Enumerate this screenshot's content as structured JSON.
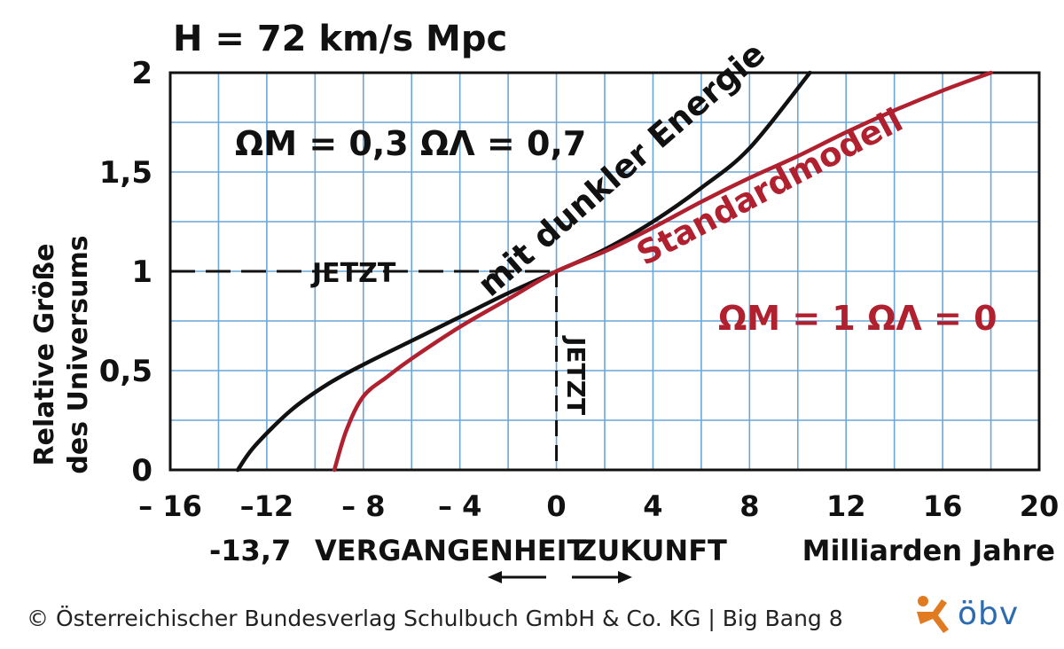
{
  "chart_data": {
    "type": "line",
    "top_label": "H = 72 km/s Mpc",
    "ylabel": [
      "Relative Größe",
      "des Universums"
    ],
    "xlabel": "Milliarden Jahre",
    "xlim": [
      -16,
      20
    ],
    "ylim": [
      0,
      2
    ],
    "x_ticks": [
      "– 16",
      "–12",
      "– 8",
      "– 4",
      "0",
      "4",
      "8",
      "12",
      "16",
      "20"
    ],
    "y_ticks": [
      "0",
      "0,5",
      "1",
      "1,5",
      "2"
    ],
    "grid": true,
    "annotations": {
      "dark_energy_params": "ΩM = 0,3   ΩΛ = 0,7",
      "standard_params": "ΩM = 1   ΩΛ = 0",
      "now_horizontal": "JETZT",
      "now_vertical": "JETZT",
      "age_label": "-13,7",
      "past": "VERGANGENHEIT",
      "future": "ZUKUNFT"
    },
    "series": [
      {
        "name": "mit dunkler Energie",
        "color": "#111111",
        "points": [
          [
            -13.2,
            0
          ],
          [
            -12.5,
            0.12
          ],
          [
            -11,
            0.3
          ],
          [
            -9.5,
            0.43
          ],
          [
            -8,
            0.53
          ],
          [
            -6,
            0.65
          ],
          [
            -4,
            0.77
          ],
          [
            -2,
            0.89
          ],
          [
            0,
            1.0
          ],
          [
            2,
            1.11
          ],
          [
            4,
            1.25
          ],
          [
            6,
            1.42
          ],
          [
            8,
            1.62
          ],
          [
            10.5,
            2.0
          ]
        ]
      },
      {
        "name": "Standardmodell",
        "color": "#b0202e",
        "points": [
          [
            -9.2,
            0
          ],
          [
            -8.7,
            0.2
          ],
          [
            -8,
            0.37
          ],
          [
            -7,
            0.47
          ],
          [
            -6,
            0.56
          ],
          [
            -4,
            0.72
          ],
          [
            -2,
            0.86
          ],
          [
            0,
            1.0
          ],
          [
            2,
            1.1
          ],
          [
            4,
            1.22
          ],
          [
            6,
            1.35
          ],
          [
            8,
            1.47
          ],
          [
            10,
            1.58
          ],
          [
            12,
            1.7
          ],
          [
            14,
            1.81
          ],
          [
            16,
            1.91
          ],
          [
            18,
            2.0
          ]
        ]
      }
    ]
  },
  "footer": {
    "copyright": "© Österreichischer Bundesverlag Schulbuch GmbH & Co. KG |  Big Bang 8",
    "logo_text": "öbv",
    "logo_color": "#e07b22"
  }
}
